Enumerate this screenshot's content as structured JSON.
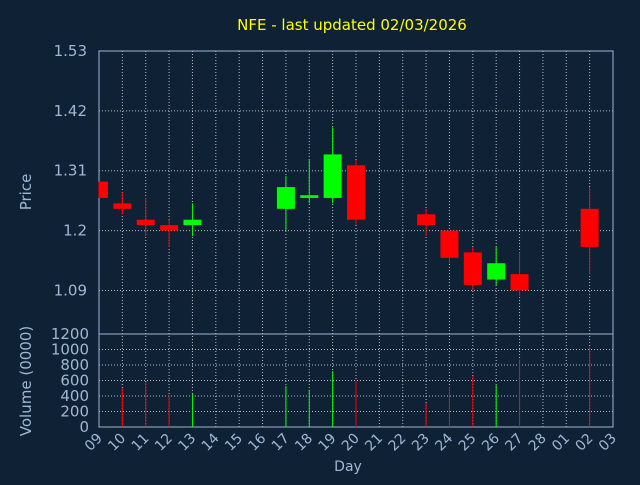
{
  "chart_data": {
    "type": "candlestick",
    "title": "NFE - last updated 02/03/2026",
    "xlabel": "Day",
    "colors": {
      "background": "#0f2135",
      "up": "#00ff00",
      "down": "#ff0000",
      "grid": "#ffffff",
      "axis_text": "#9fb8d4",
      "title": "#ffff00"
    },
    "x_ticks": [
      "09",
      "10",
      "11",
      "12",
      "13",
      "14",
      "15",
      "16",
      "17",
      "18",
      "19",
      "20",
      "21",
      "22",
      "23",
      "24",
      "25",
      "26",
      "27",
      "28",
      "01",
      "02",
      "03"
    ],
    "price_panel": {
      "ylabel": "Price",
      "ylim": [
        1.01,
        1.53
      ],
      "yticks": [
        1.09,
        1.2,
        1.31,
        1.42,
        1.53
      ],
      "ytick_labels": [
        "1.09",
        "1.2",
        "1.31",
        "1.42",
        "1.53"
      ],
      "grid": true
    },
    "volume_panel": {
      "ylabel": "Volume (0000)",
      "ylim": [
        0,
        1200
      ],
      "yticks": [
        0,
        200,
        400,
        600,
        800,
        1000,
        1200
      ],
      "ytick_labels": [
        "0",
        "200",
        "400",
        "600",
        "800",
        "1000",
        "1200"
      ],
      "grid": true
    },
    "candles": [
      {
        "day": "09",
        "open": 1.29,
        "close": 1.26,
        "high": 1.29,
        "low": 1.26,
        "volume": 0
      },
      {
        "day": "10",
        "open": 1.25,
        "close": 1.24,
        "high": 1.27,
        "low": 1.23,
        "volume": 500
      },
      {
        "day": "11",
        "open": 1.22,
        "close": 1.21,
        "high": 1.26,
        "low": 1.19,
        "volume": 580
      },
      {
        "day": "12",
        "open": 1.21,
        "close": 1.2,
        "high": 1.22,
        "low": 1.17,
        "volume": 410
      },
      {
        "day": "13",
        "open": 1.21,
        "close": 1.22,
        "high": 1.25,
        "low": 1.19,
        "volume": 430
      },
      {
        "day": "17",
        "open": 1.24,
        "close": 1.28,
        "high": 1.3,
        "low": 1.2,
        "volume": 530
      },
      {
        "day": "18",
        "open": 1.26,
        "close": 1.265,
        "high": 1.33,
        "low": 1.25,
        "volume": 480
      },
      {
        "day": "19",
        "open": 1.26,
        "close": 1.34,
        "high": 1.39,
        "low": 1.25,
        "volume": 720
      },
      {
        "day": "20",
        "open": 1.32,
        "close": 1.22,
        "high": 1.33,
        "low": 1.21,
        "volume": 600
      },
      {
        "day": "23",
        "open": 1.23,
        "close": 1.21,
        "high": 1.24,
        "low": 1.19,
        "volume": 310
      },
      {
        "day": "24",
        "open": 1.2,
        "close": 1.15,
        "high": 1.2,
        "low": 1.14,
        "volume": 520
      },
      {
        "day": "25",
        "open": 1.16,
        "close": 1.1,
        "high": 1.17,
        "low": 1.09,
        "volume": 660
      },
      {
        "day": "26",
        "open": 1.11,
        "close": 1.14,
        "high": 1.17,
        "low": 1.1,
        "volume": 540
      },
      {
        "day": "27",
        "open": 1.12,
        "close": 1.09,
        "high": 1.16,
        "low": 1.08,
        "volume": 870
      },
      {
        "day": "02",
        "open": 1.24,
        "close": 1.17,
        "high": 1.28,
        "low": 1.12,
        "volume": 1030
      }
    ]
  }
}
